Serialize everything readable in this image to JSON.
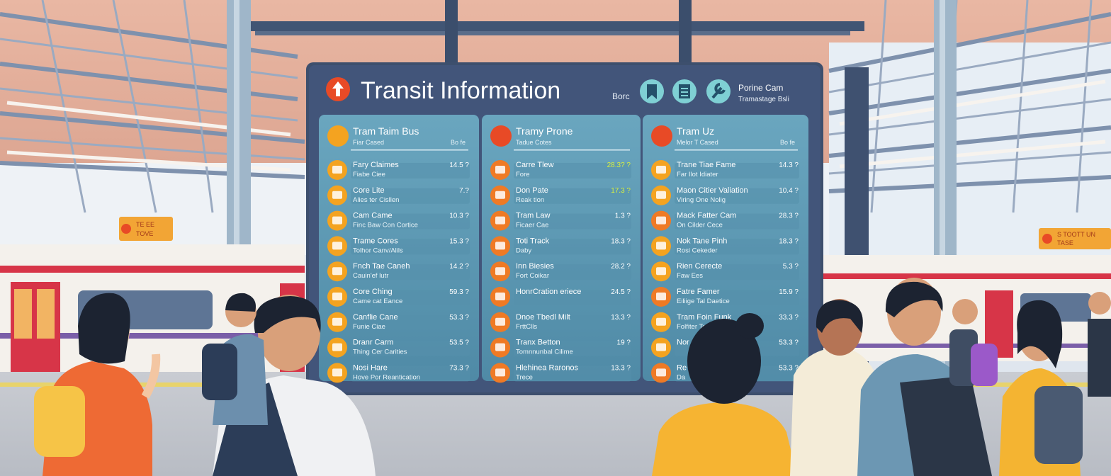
{
  "board": {
    "title": "Transit Information",
    "header_small": "Borc",
    "header_icons": [
      "bookmark-icon",
      "document-icon",
      "wrench-icon"
    ],
    "brand_line1": "Porine Cam",
    "brand_line2": "Tramastage Bsli"
  },
  "columns": [
    {
      "title": "Tram Taim Bus",
      "subtitle": "Fiar Cased",
      "tag": "Bo fe",
      "rows": [
        {
          "l1": "Fary Claimes",
          "l2": "Fiabe Ciee",
          "t": "14.5 ?"
        },
        {
          "l1": "Core Lite",
          "l2": "Alies ter Cisllen",
          "t": "7.?"
        },
        {
          "l1": "Cam Came",
          "l2": "Finc Baw Con Cortice",
          "t": "10.3 ?"
        },
        {
          "l1": "Trame Cores",
          "l2": "Tolhor Canv/Alils",
          "t": "15.3 ?"
        },
        {
          "l1": "Fnch Tae Caneh",
          "l2": "Cauin'ef lutr",
          "t": "14.2 ?"
        },
        {
          "l1": "Core Ching",
          "l2": "Came cat Eance",
          "t": "59.3 ?"
        },
        {
          "l1": "Canflie Cane",
          "l2": "Funie Ciae",
          "t": "53.3 ?"
        },
        {
          "l1": "Dranr Carm",
          "l2": "Thing Cer Carities",
          "t": "53.5 ?"
        },
        {
          "l1": "Nosi Hare",
          "l2": "Hove Por Reantication",
          "t": "73.3 ?"
        }
      ]
    },
    {
      "title": "Tramy Prone",
      "subtitle": "Tadue Cotes",
      "tag": "",
      "rows": [
        {
          "l1": "Carre Tlew",
          "l2": "Fore",
          "t": "28.3? ?"
        },
        {
          "l1": "Don Pate",
          "l2": "Reak tion",
          "t": "17.3 ?"
        },
        {
          "l1": "Tram Law",
          "l2": "Ficaer Cae",
          "t": "1.3 ?"
        },
        {
          "l1": "Toti Track",
          "l2": "Daby",
          "t": "18.3 ?"
        },
        {
          "l1": "Inn Biesies",
          "l2": "Fort Coikar",
          "t": "28.2 ?"
        },
        {
          "l1": "HonrCration eriece",
          "l2": "",
          "t": "24.5 ?"
        },
        {
          "l1": "Dnoe Tbedl Milt",
          "l2": "FrttClls",
          "t": "13.3 ?"
        },
        {
          "l1": "Tranx Betton",
          "l2": "Tomnnunbal Cilime",
          "t": "19 ?"
        },
        {
          "l1": "Hlehinea Raronos",
          "l2": "Trece",
          "t": "13.3 ?"
        }
      ]
    },
    {
      "title": "Tram Uz",
      "subtitle": "Melor T Cased",
      "tag": "Bo fe",
      "rows": [
        {
          "l1": "Trane Tiae Fame",
          "l2": "Far Ilot Idiater",
          "t": "14.3 ?"
        },
        {
          "l1": "Maon Citier Valiation",
          "l2": "Viring One Nolig",
          "t": "10.4 ?"
        },
        {
          "l1": "Mack Fatter Cam",
          "l2": "On Cilder Cece",
          "t": "28.3 ?"
        },
        {
          "l1": "Nok Tane Pinh",
          "l2": "Rosi Cekeder",
          "t": "18.3 ?"
        },
        {
          "l1": "Rien Cerecte",
          "l2": "Faw Ees",
          "t": "5.3 ?"
        },
        {
          "l1": "Fatre Famer",
          "l2": "Eiliige Tal Daetice",
          "t": "15.9 ?"
        },
        {
          "l1": "Tram Foin Funk",
          "l2": "Folfiter Teaes",
          "t": "33.3 ?"
        },
        {
          "l1": "Nor",
          "l2": "",
          "t": "53.3 ?"
        },
        {
          "l1": "Re",
          "l2": "Da",
          "t": "53.3 ?"
        }
      ]
    }
  ],
  "left_sign": {
    "line1": "TE EE",
    "line2": "TOVE"
  },
  "right_sign": {
    "line1": "S TOOTT UN",
    "line2": "TASE"
  },
  "colors": {
    "board": "#3d4f6d",
    "panel": "#5f9cb5",
    "icon": "#f4a320",
    "accent": "#e84a26",
    "time_yellow": "#d8f040"
  }
}
